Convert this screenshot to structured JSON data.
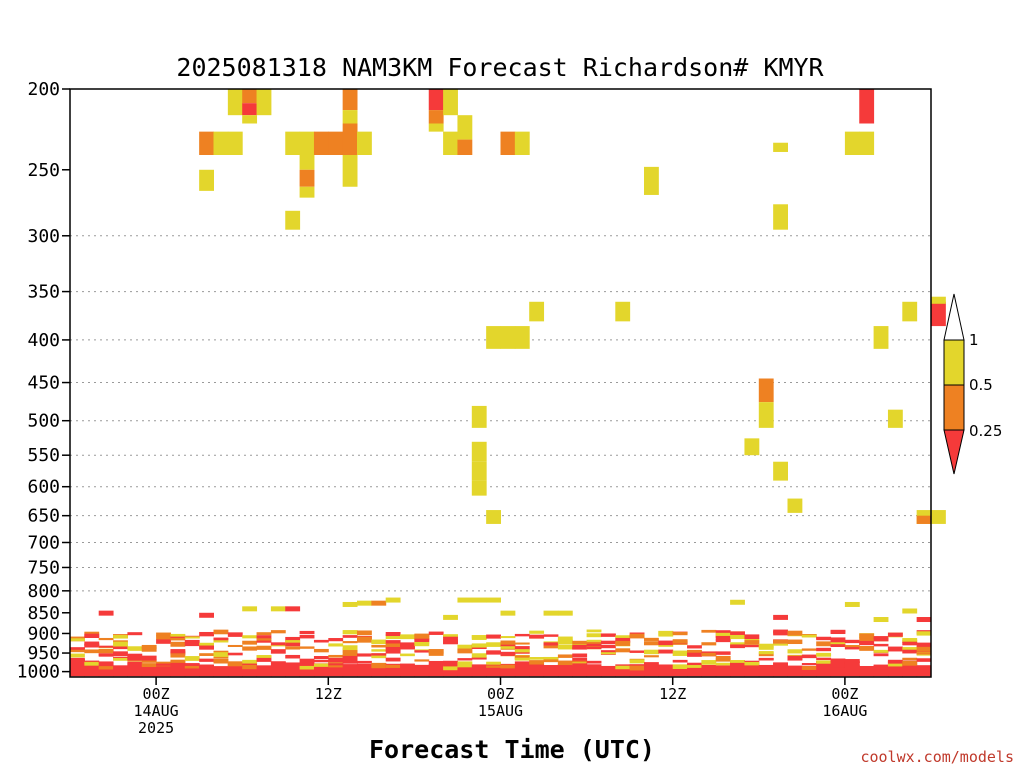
{
  "chart_data": {
    "type": "heatmap",
    "title": "2025081318 NAM3KM Forecast Richardson# KMYR",
    "xlabel": "Forecast Time (UTC)",
    "ylabel": "",
    "credit": "coolwx.com/models",
    "x_axis": {
      "start_hour": -6,
      "end_hour": 54,
      "ticks": [
        {
          "hour": 0,
          "lines": [
            "00Z",
            "14AUG",
            "2025"
          ]
        },
        {
          "hour": 12,
          "lines": [
            "12Z"
          ]
        },
        {
          "hour": 24,
          "lines": [
            "00Z",
            "15AUG"
          ]
        },
        {
          "hour": 36,
          "lines": [
            "12Z"
          ]
        },
        {
          "hour": 48,
          "lines": [
            "00Z",
            "16AUG"
          ]
        }
      ]
    },
    "y_axis": {
      "scale": "log",
      "range_hpa": [
        1015,
        200
      ],
      "tick_labels": [
        "200",
        "250",
        "300",
        "350",
        "400",
        "450",
        "500",
        "550",
        "600",
        "650",
        "700",
        "750",
        "800",
        "850",
        "900",
        "950",
        "1000"
      ],
      "grid_dotted_at": [
        300,
        350,
        400,
        450,
        500,
        550,
        600,
        650,
        700,
        750,
        800
      ]
    },
    "colorbar": {
      "labels": [
        "1",
        "0.5",
        "0.25"
      ],
      "bins": [
        {
          "name": ">1",
          "color": "#ffffff"
        },
        {
          "name": "0.5-1",
          "color": "#e3d62c"
        },
        {
          "name": "0.25-0.5",
          "color": "#ee8122"
        },
        {
          "name": "<0.25",
          "color": "#f53a3a"
        }
      ]
    },
    "colors": {
      "Y": "#e3d62c",
      "O": "#ee8122",
      "R": "#f53a3a",
      "ground": "#8c5330"
    },
    "cells": [
      [
        11,
        200,
        215,
        "Y"
      ],
      [
        12,
        200,
        208,
        "O"
      ],
      [
        12,
        208,
        215,
        "R"
      ],
      [
        12,
        215,
        220,
        "Y"
      ],
      [
        13,
        200,
        215,
        "Y"
      ],
      [
        19,
        200,
        212,
        "O"
      ],
      [
        19,
        212,
        220,
        "Y"
      ],
      [
        25,
        200,
        212,
        "R"
      ],
      [
        25,
        212,
        220,
        "O"
      ],
      [
        25,
        220,
        225,
        "Y"
      ],
      [
        26,
        200,
        215,
        "Y"
      ],
      [
        27,
        215,
        230,
        "Y"
      ],
      [
        9,
        225,
        240,
        "O"
      ],
      [
        10,
        225,
        240,
        "Y"
      ],
      [
        11,
        225,
        240,
        "Y"
      ],
      [
        15,
        225,
        240,
        "Y"
      ],
      [
        16,
        225,
        240,
        "Y"
      ],
      [
        17,
        225,
        240,
        "O"
      ],
      [
        18,
        225,
        240,
        "O"
      ],
      [
        19,
        220,
        240,
        "O"
      ],
      [
        20,
        225,
        240,
        "Y"
      ],
      [
        26,
        225,
        240,
        "Y"
      ],
      [
        27,
        230,
        240,
        "O"
      ],
      [
        30,
        225,
        240,
        "O"
      ],
      [
        31,
        225,
        240,
        "Y"
      ],
      [
        55,
        200,
        220,
        "R"
      ],
      [
        54,
        225,
        240,
        "Y"
      ],
      [
        55,
        225,
        240,
        "Y"
      ],
      [
        49,
        232,
        238,
        "Y"
      ],
      [
        9,
        250,
        265,
        "Y"
      ],
      [
        16,
        240,
        250,
        "Y"
      ],
      [
        16,
        250,
        262,
        "O"
      ],
      [
        16,
        262,
        270,
        "Y"
      ],
      [
        19,
        240,
        262,
        "Y"
      ],
      [
        40,
        248,
        268,
        "Y"
      ],
      [
        15,
        280,
        295,
        "Y"
      ],
      [
        49,
        275,
        295,
        "Y"
      ],
      [
        32,
        360,
        380,
        "Y"
      ],
      [
        38,
        360,
        380,
        "Y"
      ],
      [
        58,
        360,
        380,
        "Y"
      ],
      [
        60,
        360,
        385,
        "R"
      ],
      [
        60,
        355,
        362,
        "Y"
      ],
      [
        29,
        385,
        410,
        "Y"
      ],
      [
        30,
        385,
        410,
        "Y"
      ],
      [
        31,
        385,
        410,
        "Y"
      ],
      [
        56,
        385,
        410,
        "Y"
      ],
      [
        48,
        445,
        475,
        "O"
      ],
      [
        48,
        475,
        510,
        "Y"
      ],
      [
        28,
        480,
        510,
        "Y"
      ],
      [
        57,
        485,
        510,
        "Y"
      ],
      [
        28,
        530,
        560,
        "Y"
      ],
      [
        28,
        560,
        590,
        "Y"
      ],
      [
        28,
        590,
        615,
        "Y"
      ],
      [
        47,
        525,
        550,
        "Y"
      ],
      [
        49,
        560,
        590,
        "Y"
      ],
      [
        29,
        640,
        665,
        "Y"
      ],
      [
        50,
        620,
        645,
        "Y"
      ],
      [
        59,
        640,
        665,
        "Y"
      ],
      [
        60,
        640,
        665,
        "Y"
      ],
      [
        59,
        650,
        665,
        "O"
      ]
    ],
    "ground_hpa": 1015
  }
}
